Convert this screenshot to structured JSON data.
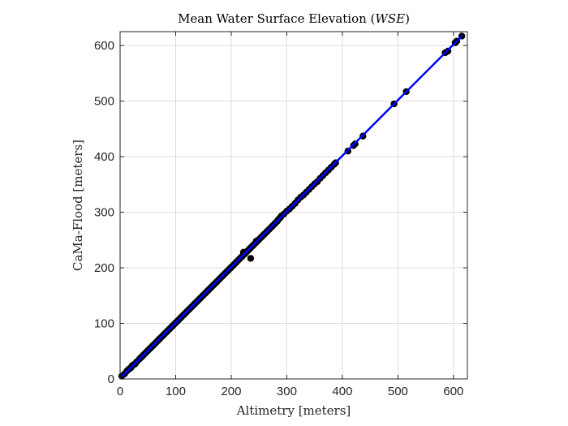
{
  "chart_data": {
    "type": "scatter",
    "title": "Mean Water Surface Elevation (WSE)",
    "title_parts": {
      "prefix": "Mean Water Surface Elevation (",
      "italic": "WSE",
      "suffix": ")"
    },
    "xlabel": "Altimetry [meters]",
    "ylabel": "CaMa-Flood [meters]",
    "xlim": [
      0,
      625
    ],
    "ylim": [
      0,
      625
    ],
    "xticks": [
      0,
      100,
      200,
      300,
      400,
      500,
      600
    ],
    "yticks": [
      0,
      100,
      200,
      300,
      400,
      500,
      600
    ],
    "grid": true,
    "colors": {
      "points": "#000000",
      "fit_line": "#0000ff",
      "grid": "#dcdcdc",
      "axes": "#262626"
    },
    "series": [
      {
        "kind": "points",
        "x": [
          3,
          8,
          12,
          15,
          18,
          20,
          22,
          25,
          27,
          30,
          35,
          38,
          40,
          42,
          45,
          48,
          50,
          53,
          55,
          58,
          60,
          63,
          65,
          68,
          70,
          72,
          75,
          78,
          80,
          83,
          85,
          88,
          90,
          93,
          95,
          98,
          100,
          103,
          105,
          108,
          110,
          113,
          115,
          118,
          120,
          123,
          125,
          128,
          130,
          133,
          135,
          138,
          140,
          143,
          145,
          148,
          150,
          153,
          155,
          158,
          160,
          163,
          165,
          168,
          170,
          173,
          175,
          178,
          180,
          183,
          185,
          188,
          190,
          193,
          195,
          198,
          200,
          203,
          205,
          208,
          210,
          213,
          215,
          218,
          220,
          223,
          225,
          228,
          230,
          233,
          235,
          238,
          240,
          243,
          245,
          248,
          250,
          253,
          255,
          258,
          260,
          263,
          265,
          268,
          270,
          273,
          275,
          278,
          280,
          283,
          285,
          288,
          290,
          295,
          300,
          305,
          310,
          315,
          320,
          325,
          330,
          335,
          340,
          345,
          350,
          355,
          360,
          365,
          370,
          375,
          380,
          385,
          388,
          410,
          420,
          423,
          437,
          493,
          515,
          585,
          590,
          603,
          606,
          615,
          235,
          222,
          245
        ],
        "y": [
          5,
          9,
          14,
          17,
          19,
          21,
          24,
          26,
          27,
          31,
          36,
          39,
          41,
          43,
          46,
          49,
          51,
          54,
          56,
          59,
          61,
          64,
          66,
          69,
          71,
          73,
          76,
          79,
          81,
          84,
          86,
          89,
          91,
          94,
          96,
          99,
          101,
          104,
          106,
          109,
          111,
          114,
          116,
          119,
          121,
          124,
          126,
          129,
          131,
          134,
          136,
          139,
          141,
          144,
          146,
          149,
          151,
          154,
          156,
          159,
          161,
          164,
          166,
          169,
          171,
          174,
          176,
          179,
          181,
          184,
          186,
          189,
          191,
          194,
          196,
          199,
          201,
          204,
          206,
          209,
          211,
          214,
          216,
          219,
          221,
          224,
          226,
          229,
          231,
          234,
          236,
          239,
          241,
          244,
          246,
          249,
          251,
          254,
          256,
          259,
          261,
          264,
          266,
          269,
          271,
          274,
          276,
          279,
          281,
          284,
          287,
          290,
          293,
          297,
          302,
          306,
          311,
          316,
          322,
          327,
          331,
          336,
          341,
          346,
          351,
          355,
          361,
          366,
          371,
          376,
          381,
          386,
          389,
          410,
          420,
          423,
          437,
          495,
          517,
          587,
          590,
          605,
          608,
          617,
          217,
          228,
          248
        ]
      },
      {
        "kind": "line",
        "x": [
          3,
          615
        ],
        "y": [
          4,
          617
        ]
      }
    ]
  }
}
